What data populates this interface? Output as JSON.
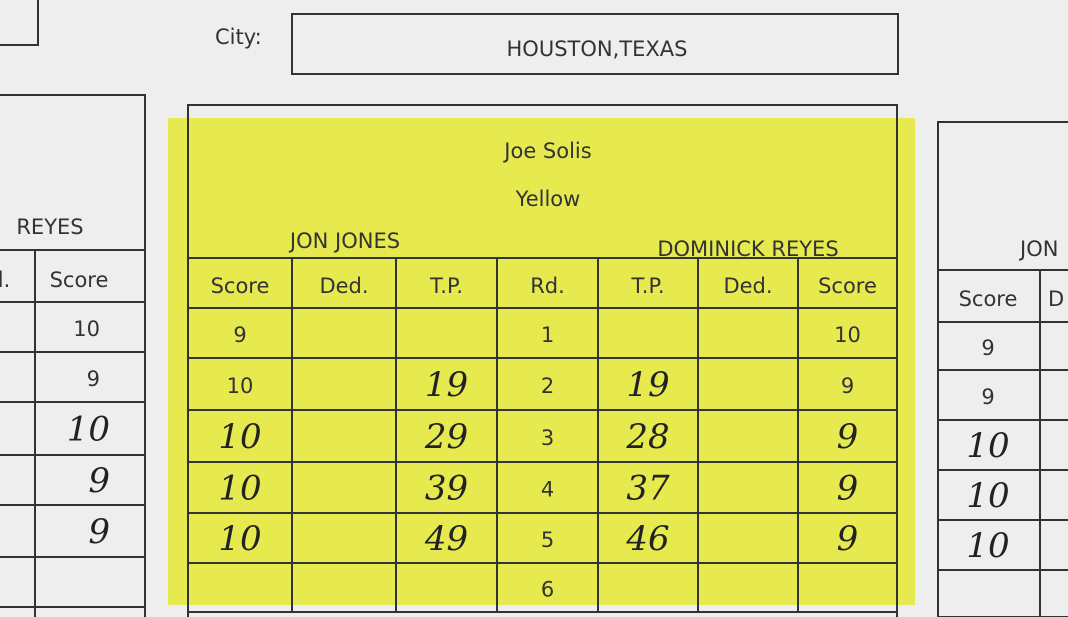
{
  "city": {
    "label": "City:",
    "value": "HOUSTON,TEXAS"
  },
  "left_card": {
    "fighter": "REYES",
    "headers": [
      "l.",
      "Score"
    ],
    "scores": [
      10,
      9,
      10,
      9,
      9
    ]
  },
  "main_card": {
    "judge": "Joe Solis",
    "color": "Yellow",
    "fighter_left": "JON JONES",
    "fighter_right": "DOMINICK REYES",
    "headers": [
      "Score",
      "Ded.",
      "T.P.",
      "Rd.",
      "T.P.",
      "Ded.",
      "Score"
    ],
    "rows": [
      [
        9,
        null,
        null,
        1,
        null,
        null,
        10
      ],
      [
        10,
        null,
        19,
        2,
        19,
        null,
        9
      ],
      [
        10,
        null,
        29,
        3,
        28,
        null,
        9
      ],
      [
        10,
        null,
        39,
        4,
        37,
        null,
        9
      ],
      [
        10,
        null,
        49,
        5,
        46,
        null,
        9
      ],
      [
        null,
        null,
        null,
        6,
        null,
        null,
        null
      ]
    ]
  },
  "right_card": {
    "fighter": "JON",
    "headers": [
      "Score",
      "D"
    ],
    "scores": [
      9,
      9,
      10,
      10,
      10
    ]
  }
}
